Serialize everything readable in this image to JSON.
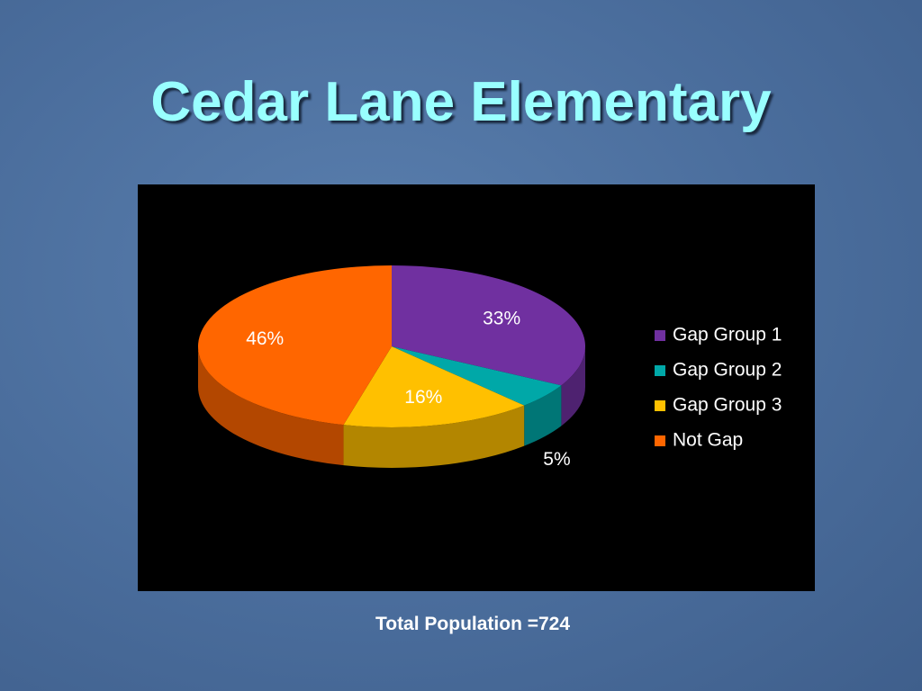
{
  "title": "Cedar Lane Elementary",
  "chart_data": {
    "type": "pie3d",
    "categories": [
      "Gap Group 1",
      "Gap Group 2",
      "Gap Group 3",
      "Not Gap"
    ],
    "values": [
      33,
      5,
      16,
      46
    ],
    "value_labels": [
      "33%",
      "5%",
      "16%",
      "46%"
    ],
    "colors": [
      "#7030a0",
      "#00a8a8",
      "#ffc000",
      "#ff6600"
    ],
    "legend": "right"
  },
  "footer": "Total Population =724"
}
